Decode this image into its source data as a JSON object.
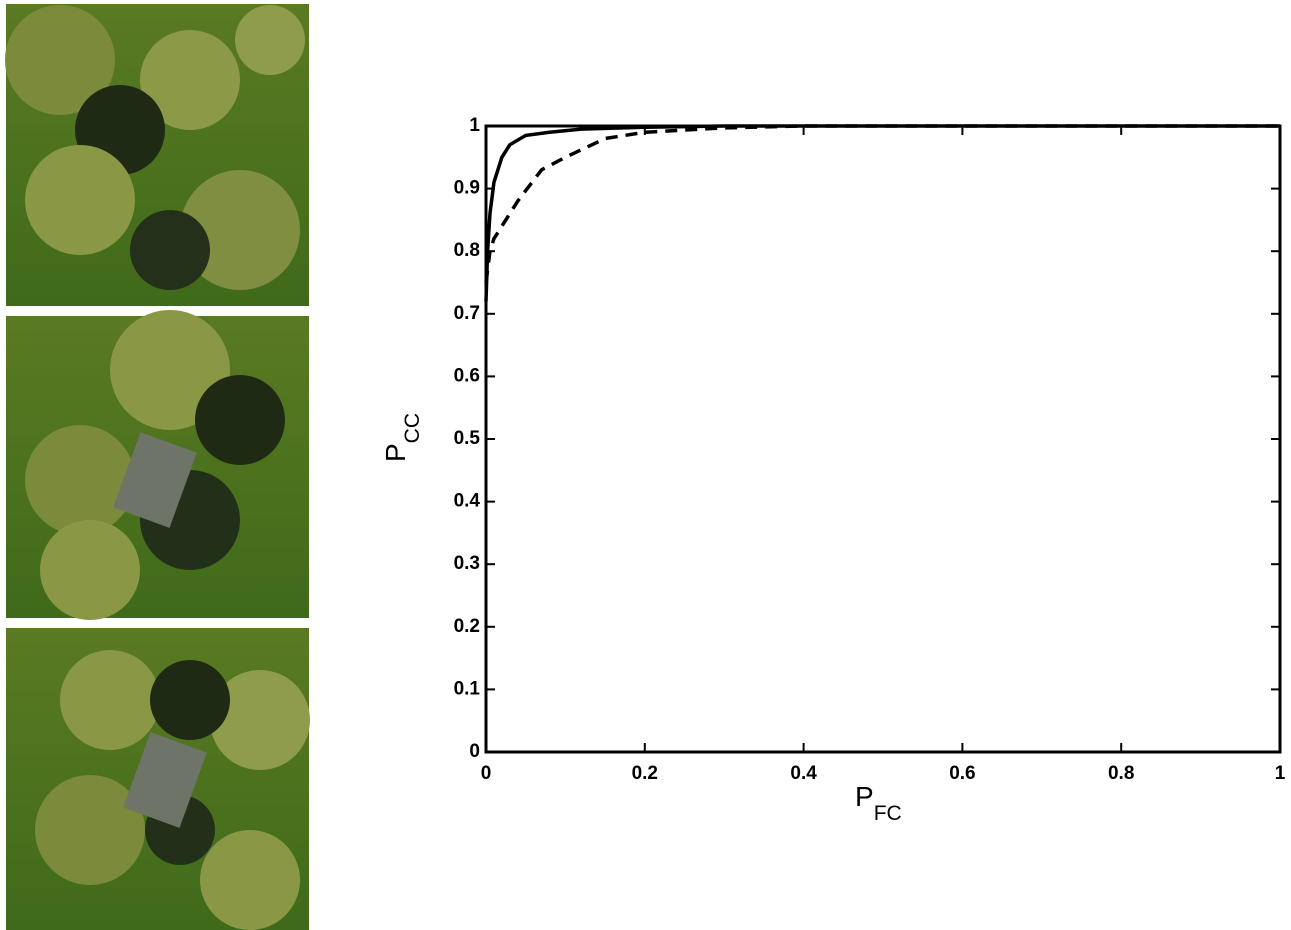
{
  "chart_data": {
    "type": "line",
    "xlabel": "P",
    "xlabel_subscript": "FC",
    "ylabel": "P",
    "ylabel_subscript": "CC",
    "xlim": [
      0,
      1
    ],
    "xticks": [
      0,
      0.2,
      0.4,
      0.6,
      0.8,
      1
    ],
    "ylim": [
      0,
      1
    ],
    "yticks": [
      0,
      0.1,
      0.2,
      0.3,
      0.4,
      0.5,
      0.6,
      0.7,
      0.8,
      0.9,
      1
    ],
    "grid": false,
    "series": [
      {
        "color": "#000000",
        "style": "solid",
        "x": [
          0,
          0.002,
          0.005,
          0.01,
          0.02,
          0.03,
          0.05,
          0.08,
          0.12,
          0.2,
          0.3,
          1
        ],
        "values": [
          0.72,
          0.8,
          0.86,
          0.91,
          0.95,
          0.97,
          0.985,
          0.99,
          0.995,
          0.998,
          1,
          1
        ]
      },
      {
        "color": "#000000",
        "style": "dashed",
        "x": [
          0,
          0.005,
          0.01,
          0.02,
          0.04,
          0.07,
          0.1,
          0.15,
          0.2,
          0.3,
          0.4,
          1
        ],
        "values": [
          0.75,
          0.8,
          0.82,
          0.84,
          0.88,
          0.93,
          0.95,
          0.98,
          0.99,
          0.997,
          1,
          1
        ]
      }
    ]
  }
}
